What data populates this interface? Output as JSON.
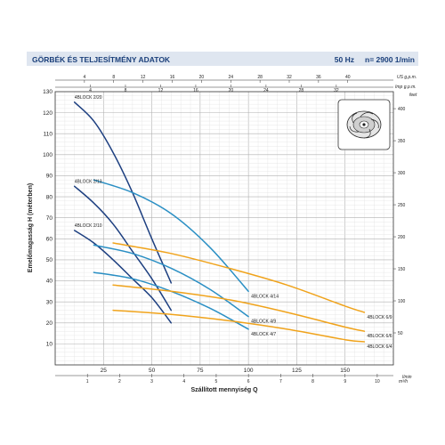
{
  "header": {
    "title": "GÖRBÉK ÉS TELJESÍTMÉNY ADATOK",
    "freq": "50 Hz",
    "speed": "n= 2900  1/min"
  },
  "chart_data": {
    "type": "line",
    "title": "GÖRBÉK ÉS TELJESÍTMÉNY ADATOK",
    "xlabel": "Szállított mennyiség Q",
    "ylabel": "Emelőmagasság H (méterben)",
    "xlim": [
      0,
      175
    ],
    "ylim": [
      0,
      130
    ],
    "x_unit": "l/min",
    "y2_unit": "feet",
    "x_ticks": [
      25,
      50,
      75,
      100,
      125,
      150
    ],
    "y_ticks": [
      10,
      20,
      30,
      40,
      50,
      60,
      70,
      80,
      90,
      100,
      110,
      120,
      130
    ],
    "right_axis": {
      "unit": "feet",
      "ticks": [
        50,
        100,
        150,
        200,
        250,
        300,
        350,
        400
      ]
    },
    "top_axis_us": {
      "unit": "US g.p.m.",
      "ticks": [
        4,
        8,
        12,
        16,
        20,
        24,
        28,
        32,
        36,
        40
      ]
    },
    "top_axis_imp": {
      "unit": "Imp g.p.m.",
      "ticks": [
        4,
        8,
        12,
        16,
        20,
        24,
        28,
        32
      ]
    },
    "bottom_axis_m3h": {
      "unit": "m³/h",
      "ticks": [
        1,
        2,
        3,
        4,
        5,
        6,
        7,
        8,
        9,
        10
      ]
    },
    "grid": true,
    "series": [
      {
        "name": "4BLOCK 2/20",
        "color": "#1d3f80",
        "x": [
          10,
          20,
          30,
          40,
          50,
          60
        ],
        "y": [
          125,
          116,
          101,
          82,
          60,
          39
        ]
      },
      {
        "name": "4BLOCK 2/13",
        "color": "#1d3f80",
        "x": [
          10,
          20,
          30,
          40,
          50,
          60
        ],
        "y": [
          85,
          77,
          67,
          54,
          41,
          26
        ]
      },
      {
        "name": "4BLOCK 2/10",
        "color": "#1d3f80",
        "x": [
          10,
          20,
          30,
          40,
          50,
          60
        ],
        "y": [
          64,
          58,
          50,
          41,
          32,
          20
        ]
      },
      {
        "name": "4BLOCK 4/14",
        "color": "#2a8fc4",
        "x": [
          20,
          40,
          60,
          80,
          100
        ],
        "y": [
          88,
          82,
          72,
          56,
          35
        ]
      },
      {
        "name": "4BLOCK 4/9",
        "color": "#2a8fc4",
        "x": [
          20,
          40,
          60,
          80,
          100
        ],
        "y": [
          57,
          53,
          46,
          36,
          23
        ]
      },
      {
        "name": "4BLOCK 4/7",
        "color": "#2a8fc4",
        "x": [
          20,
          40,
          60,
          80,
          100
        ],
        "y": [
          44,
          41,
          35,
          27,
          17
        ]
      },
      {
        "name": "4BLOCK 6/9",
        "color": "#f0a31b",
        "x": [
          30,
          60,
          90,
          120,
          150,
          160
        ],
        "y": [
          58,
          53,
          46,
          38,
          28,
          25
        ]
      },
      {
        "name": "4BLOCK 6/6",
        "color": "#f0a31b",
        "x": [
          30,
          60,
          90,
          120,
          150,
          160
        ],
        "y": [
          38,
          35,
          31,
          25,
          18,
          16
        ]
      },
      {
        "name": "4BLOCK 6/4",
        "color": "#f0a31b",
        "x": [
          30,
          60,
          90,
          120,
          150,
          160
        ],
        "y": [
          26,
          24,
          21,
          17,
          12,
          11
        ]
      }
    ]
  }
}
